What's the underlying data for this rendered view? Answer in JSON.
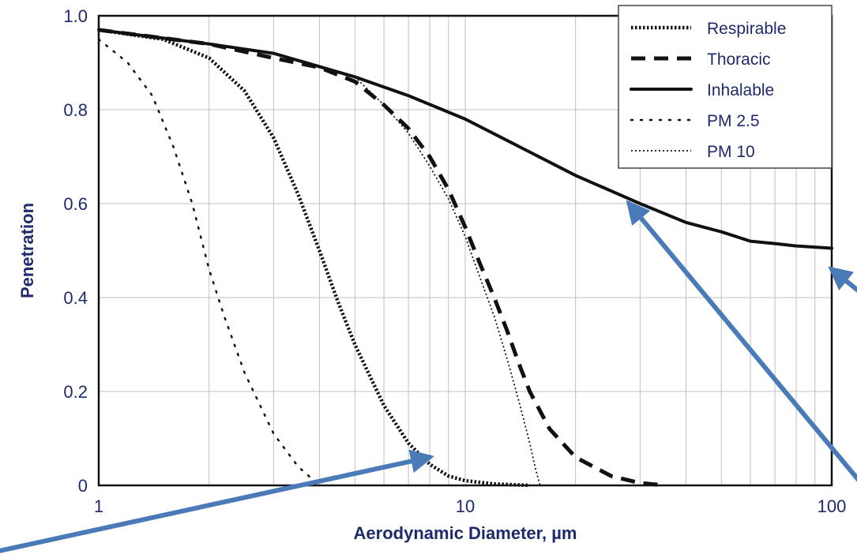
{
  "chart_data": {
    "type": "line",
    "xlabel": "Aerodynamic Diameter, µm",
    "ylabel": "Penetration",
    "xscale": "log",
    "xlim": [
      1,
      100
    ],
    "ylim": [
      0,
      1.0
    ],
    "grid": true,
    "legend_position": "top-right",
    "x_ticks": [
      1,
      10,
      100
    ],
    "x_tick_labels": [
      "1",
      "10",
      "100"
    ],
    "y_ticks": [
      0,
      0.2,
      0.4,
      0.6,
      0.8,
      1.0
    ],
    "y_tick_labels": [
      "0",
      "0.2",
      "0.4",
      "0.6",
      "0.8",
      "1.0"
    ],
    "series": [
      {
        "name": "Respirable",
        "style": "dotted-bold",
        "x": [
          1,
          1.5,
          2,
          2.5,
          3,
          3.5,
          4,
          4.5,
          5,
          6,
          7,
          8,
          9,
          10,
          12,
          15
        ],
        "y": [
          0.97,
          0.95,
          0.91,
          0.84,
          0.74,
          0.62,
          0.5,
          0.39,
          0.3,
          0.17,
          0.09,
          0.045,
          0.02,
          0.01,
          0.003,
          0.0
        ]
      },
      {
        "name": "Thoracic",
        "style": "dashed",
        "x": [
          1,
          2,
          3,
          4,
          5,
          6,
          7,
          8,
          9,
          10,
          11,
          12,
          13,
          14,
          15,
          17,
          20,
          25,
          30,
          35
        ],
        "y": [
          0.97,
          0.94,
          0.91,
          0.89,
          0.86,
          0.81,
          0.76,
          0.7,
          0.63,
          0.55,
          0.47,
          0.4,
          0.33,
          0.26,
          0.2,
          0.12,
          0.06,
          0.02,
          0.005,
          0.0
        ]
      },
      {
        "name": "Inhalable",
        "style": "solid",
        "x": [
          1,
          2,
          3,
          5,
          7,
          10,
          15,
          20,
          30,
          40,
          50,
          60,
          70,
          80,
          100
        ],
        "y": [
          0.97,
          0.94,
          0.92,
          0.87,
          0.83,
          0.78,
          0.71,
          0.66,
          0.6,
          0.56,
          0.54,
          0.52,
          0.515,
          0.51,
          0.505
        ]
      },
      {
        "name": "PM 2.5",
        "style": "sparse-dotted",
        "x": [
          1,
          1.2,
          1.4,
          1.6,
          1.8,
          2,
          2.2,
          2.5,
          3,
          3.5,
          4
        ],
        "y": [
          0.95,
          0.9,
          0.83,
          0.72,
          0.6,
          0.46,
          0.36,
          0.24,
          0.11,
          0.04,
          0.0
        ]
      },
      {
        "name": "PM 10",
        "style": "fine-dotted",
        "x": [
          5,
          6,
          7,
          8,
          9,
          10,
          11,
          12,
          13,
          14,
          15,
          15.5,
          16
        ],
        "y": [
          0.87,
          0.81,
          0.75,
          0.68,
          0.61,
          0.53,
          0.44,
          0.36,
          0.27,
          0.18,
          0.09,
          0.04,
          0.0
        ]
      }
    ],
    "annotations": [
      {
        "type": "arrow",
        "color": "#4a7ab8",
        "target_x": 8,
        "target_y": 0.06
      },
      {
        "type": "arrow",
        "color": "#4a7ab8",
        "target_x": 28,
        "target_y": 0.6
      },
      {
        "type": "arrow",
        "color": "#4a7ab8",
        "target_x": 100,
        "target_y": 0.46
      }
    ],
    "colors": {
      "text": "#1f2a6b",
      "grid": "#bfbfbf",
      "lines": "#111111",
      "arrows": "#4a7ab8"
    }
  }
}
